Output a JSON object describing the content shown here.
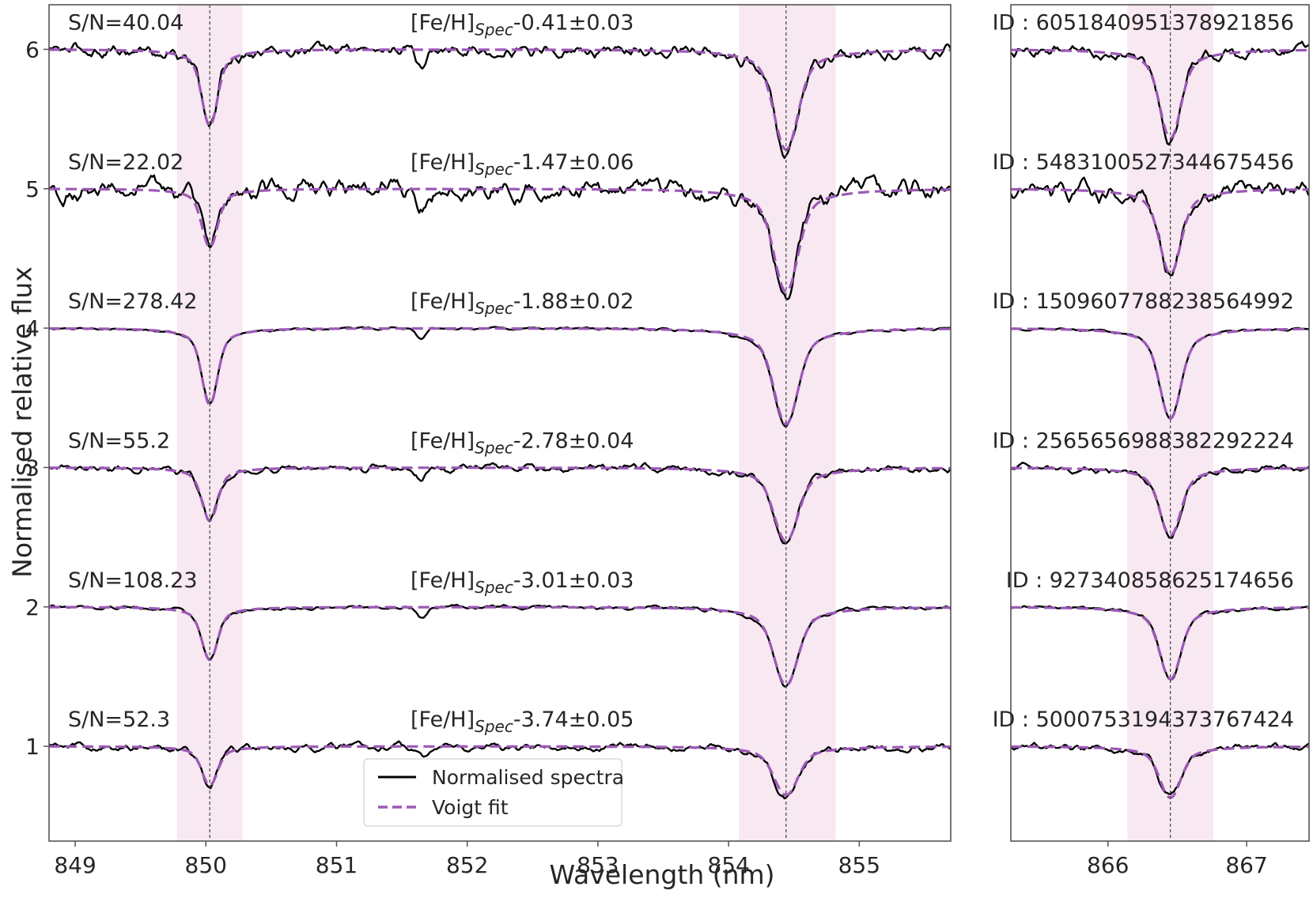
{
  "chart_data": {
    "type": "line",
    "ylabel": "Normalised relative flux",
    "xlabel": "Wavelength (nm)",
    "legend": {
      "placement": "lower-center",
      "entries": [
        {
          "label": "Normalised spectra",
          "color": "#000000",
          "style": "solid"
        },
        {
          "label": "Voigt fit",
          "color": "#9b59b6",
          "style": "dashed"
        }
      ]
    },
    "grid": false,
    "panels": [
      {
        "name": "left",
        "xlim": [
          848.8,
          855.7
        ],
        "ylim": [
          0.32,
          6.32
        ],
        "xticks": [
          849,
          850,
          851,
          852,
          853,
          854,
          855
        ],
        "yticks": [
          1,
          2,
          3,
          4,
          5,
          6
        ],
        "lines": [
          {
            "center": 850.03,
            "band": [
              849.78,
              850.28
            ],
            "width": 0.055
          },
          {
            "center": 854.44,
            "band": [
              854.08,
              854.82
            ],
            "width": 0.085
          }
        ]
      },
      {
        "name": "right",
        "xlim": [
          865.3,
          867.45
        ],
        "ylim": [
          0.32,
          6.32
        ],
        "xticks": [
          866,
          867
        ],
        "lines": [
          {
            "center": 866.45,
            "band": [
              866.14,
              866.76
            ],
            "width": 0.07
          }
        ]
      }
    ],
    "spectra": [
      {
        "offset": 6,
        "sn_label": "S/N=40.04",
        "feh_prefix": "[Fe/H]",
        "feh_sub": "Spec",
        "feh_value": "-0.41±0.03",
        "id_label": "ID : 6051840951378921856",
        "depths": [
          0.55,
          0.72,
          0.64
        ],
        "noise": 0.035
      },
      {
        "offset": 5,
        "sn_label": "S/N=22.02",
        "feh_prefix": "[Fe/H]",
        "feh_sub": "Spec",
        "feh_value": "-1.47±0.06",
        "id_label": "ID : 5483100527344675456",
        "depths": [
          0.42,
          0.74,
          0.61
        ],
        "noise": 0.055
      },
      {
        "offset": 4,
        "sn_label": "S/N=278.42",
        "feh_prefix": "[Fe/H]",
        "feh_sub": "Spec",
        "feh_value": "-1.88±0.02",
        "id_label": "ID : 1509607788238564992",
        "depths": [
          0.55,
          0.69,
          0.65
        ],
        "noise": 0.006
      },
      {
        "offset": 3,
        "sn_label": "S/N=55.2",
        "feh_prefix": "[Fe/H]",
        "feh_sub": "Spec",
        "feh_value": "-2.78±0.04",
        "id_label": "ID : 2565656988382292224",
        "depths": [
          0.38,
          0.53,
          0.49
        ],
        "noise": 0.02
      },
      {
        "offset": 2,
        "sn_label": "S/N=108.23",
        "feh_prefix": "[Fe/H]",
        "feh_sub": "Spec",
        "feh_value": "-3.01±0.03",
        "id_label": "ID : 927340858625174656",
        "depths": [
          0.38,
          0.56,
          0.52
        ],
        "noise": 0.01
      },
      {
        "offset": 1,
        "sn_label": "S/N=52.3",
        "feh_prefix": "[Fe/H]",
        "feh_sub": "Spec",
        "feh_value": "-3.74±0.05",
        "id_label": "ID : 5000753194373767424",
        "depths": [
          0.28,
          0.35,
          0.37
        ],
        "noise": 0.02
      }
    ],
    "colors": {
      "spectrum": "#000000",
      "fit": "#9b59b6",
      "band": "#f6e4ef",
      "axis": "#555555",
      "text": "#262626"
    }
  }
}
